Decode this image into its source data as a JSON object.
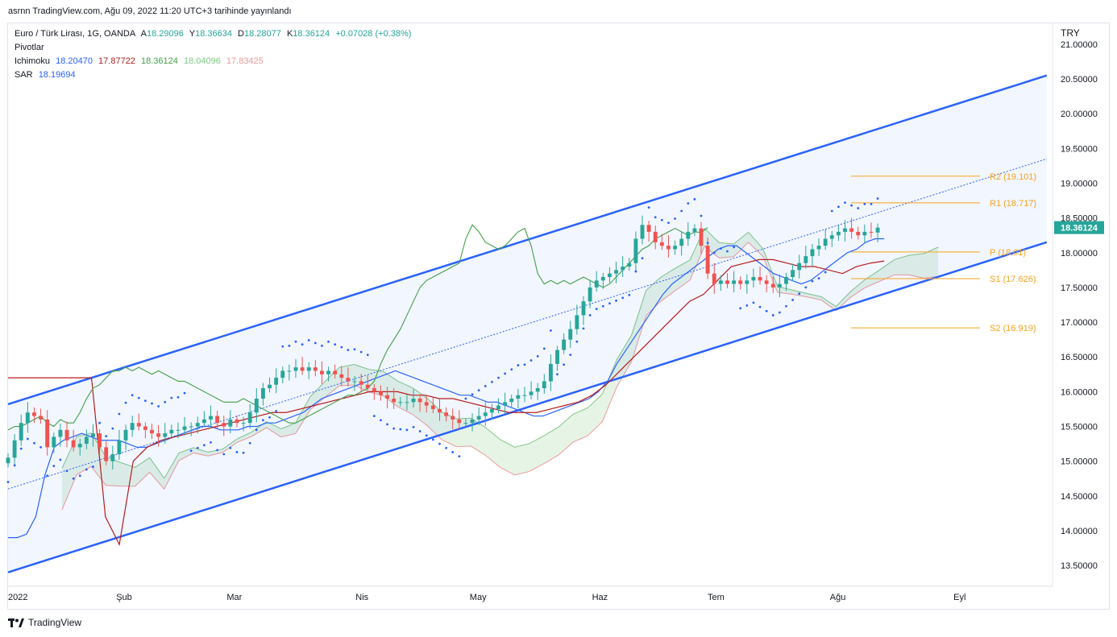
{
  "header": {
    "publish_line": "asrnn TradingView.com, Ağu 09, 2022 11:20 UTC+3 tarihinde yayınlandı"
  },
  "legend": {
    "symbol": "Euro / Türk Lirası, 1G, OANDA",
    "o_label": "A",
    "o_value": "18.29096",
    "h_label": "Y",
    "h_value": "18.36634",
    "l_label": "D",
    "l_value": "18.28077",
    "c_label": "K",
    "c_value": "18.36124",
    "change": "+0.07028 (+0.38%)",
    "pivots_label": "Pivotlar",
    "ichimoku_label": "Ichimoku",
    "ichimoku_values": [
      "18.20470",
      "17.87722",
      "18.36124",
      "18.04096",
      "17.83425"
    ],
    "sar_label": "SAR",
    "sar_value": "18.19694"
  },
  "footer": {
    "brand": "TradingView"
  },
  "colors": {
    "up": "#26a69a",
    "down": "#ef5350",
    "channel": "#2962ff",
    "tenkan": "#2962ff",
    "kijun": "#b71c1c",
    "chikou": "#43a047",
    "span_a": "#81c784",
    "span_b": "#ef9a9a",
    "pivot": "#f7a31c",
    "sar": "#2962ff",
    "bg": "#ffffff"
  },
  "chart_data": {
    "type": "candlestick",
    "currency": "TRY",
    "y_ticks": [
      "21.00000",
      "20.50000",
      "20.00000",
      "19.50000",
      "19.00000",
      "18.50000",
      "18.00000",
      "17.50000",
      "17.00000",
      "16.50000",
      "16.00000",
      "15.50000",
      "15.00000",
      "14.50000",
      "14.00000",
      "13.50000"
    ],
    "x_ticks": [
      "2022",
      "Şub",
      "Mar",
      "Nis",
      "May",
      "Haz",
      "Tem",
      "Ağu",
      "Eyl"
    ],
    "ylim": [
      13.2,
      21.3
    ],
    "last_price": "18.36124",
    "pivots": [
      {
        "label": "R2 (19.101)",
        "value": 19.101
      },
      {
        "label": "R1 (18.717)",
        "value": 18.717
      },
      {
        "label": "P (18.01)",
        "value": 18.01
      },
      {
        "label": "S1 (17.626)",
        "value": 17.626
      },
      {
        "label": "S2 (16.919)",
        "value": 16.919
      }
    ],
    "channel": {
      "lower": [
        [
          0,
          13.4
        ],
        [
          179,
          18.15
        ]
      ],
      "upper": [
        [
          0,
          15.82
        ],
        [
          179,
          20.55
        ]
      ],
      "mid": [
        [
          0,
          14.6
        ],
        [
          179,
          19.35
        ]
      ]
    },
    "closes": [
      15.05,
      15.3,
      15.55,
      15.7,
      15.65,
      15.6,
      15.2,
      15.35,
      15.45,
      15.3,
      15.2,
      15.25,
      15.35,
      15.4,
      15.2,
      15.0,
      15.1,
      15.3,
      15.45,
      15.55,
      15.5,
      15.45,
      15.4,
      15.35,
      15.4,
      15.45,
      15.45,
      15.5,
      15.5,
      15.55,
      15.6,
      15.65,
      15.55,
      15.5,
      15.6,
      15.55,
      15.55,
      15.7,
      15.9,
      16.05,
      16.1,
      16.2,
      16.3,
      16.3,
      16.35,
      16.3,
      16.35,
      16.3,
      16.25,
      16.3,
      16.25,
      16.2,
      16.15,
      16.15,
      16.1,
      16.05,
      16.0,
      15.95,
      15.9,
      15.85,
      15.85,
      15.85,
      15.9,
      15.85,
      15.8,
      15.75,
      15.7,
      15.65,
      15.6,
      15.55,
      15.55,
      15.6,
      15.65,
      15.7,
      15.75,
      15.8,
      15.85,
      15.9,
      15.95,
      15.95,
      16.0,
      16.05,
      16.15,
      16.4,
      16.6,
      16.75,
      16.9,
      17.1,
      17.3,
      17.5,
      17.6,
      17.65,
      17.7,
      17.75,
      17.8,
      17.85,
      18.2,
      18.4,
      18.3,
      18.15,
      18.1,
      18.05,
      18.1,
      18.2,
      18.3,
      18.35,
      18.1,
      17.7,
      17.55,
      17.6,
      17.55,
      17.6,
      17.55,
      17.6,
      17.65,
      17.6,
      17.55,
      17.5,
      17.55,
      17.65,
      17.75,
      17.85,
      17.95,
      18.05,
      18.1,
      18.2,
      18.25,
      18.3,
      18.35,
      18.3,
      18.25,
      18.3,
      18.29,
      18.36
    ],
    "tenkan": [
      13.9,
      13.9,
      13.95,
      14.2,
      14.8,
      15.2,
      15.3,
      15.35,
      15.4,
      15.35,
      15.3,
      15.3,
      15.3,
      15.25,
      15.2,
      15.2,
      15.25,
      15.3,
      15.35,
      15.4,
      15.45,
      15.5,
      15.5,
      15.45,
      15.45,
      15.45,
      15.5,
      15.5,
      15.55,
      15.55,
      15.6,
      15.65,
      15.7,
      15.8,
      15.9,
      15.95,
      16.0,
      16.05,
      16.1,
      16.15,
      16.2,
      16.25,
      16.3,
      16.25,
      16.2,
      16.15,
      16.1,
      16.05,
      16.0,
      15.95,
      15.95,
      15.9,
      15.85,
      15.85,
      15.8,
      15.75,
      15.7,
      15.65,
      15.65,
      15.7,
      15.75,
      15.8,
      15.85,
      15.9,
      16.0,
      16.15,
      16.4,
      16.6,
      16.8,
      17.0,
      17.2,
      17.4,
      17.55,
      17.65,
      17.75,
      17.85,
      17.95,
      18.05,
      18.1,
      18.1,
      18.0,
      17.9,
      17.8,
      17.7,
      17.65,
      17.6,
      17.55,
      17.6,
      17.7,
      17.8,
      17.9,
      18.0,
      18.05,
      18.15,
      18.2,
      18.2
    ],
    "kijun": [
      16.2,
      16.2,
      16.2,
      16.2,
      16.2,
      16.2,
      16.2,
      14.2,
      13.8,
      15.0,
      15.2,
      15.3,
      15.35,
      15.4,
      15.45,
      15.5,
      15.55,
      15.6,
      15.65,
      15.7,
      15.7,
      15.75,
      15.8,
      15.85,
      15.9,
      15.95,
      16.0,
      16.0,
      16.0,
      15.95,
      15.95,
      15.9,
      15.9,
      15.85,
      15.8,
      15.75,
      15.7,
      15.7,
      15.7,
      15.75,
      15.8,
      15.85,
      15.95,
      16.1,
      16.3,
      16.5,
      16.7,
      16.9,
      17.1,
      17.3,
      17.4,
      17.6,
      17.8,
      17.85,
      17.9,
      17.9,
      17.85,
      17.8,
      17.8,
      17.75,
      17.7,
      17.8,
      17.85,
      17.88
    ]
  }
}
